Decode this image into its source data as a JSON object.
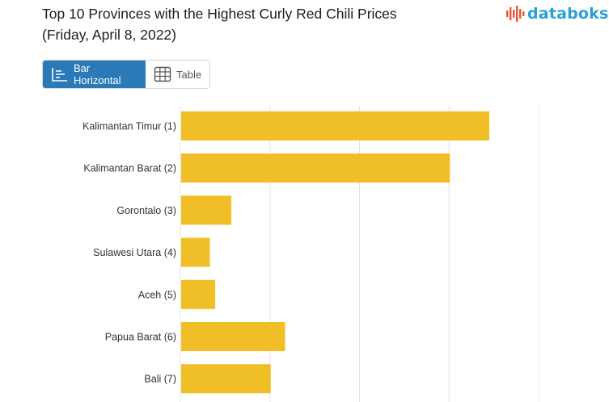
{
  "title": {
    "line1": "Top 10 Provinces with the Highest Curly Red Chili Prices",
    "line2": "(Friday, April 8, 2022)"
  },
  "logo": {
    "text": "databoks",
    "icon": "bar-logo-icon",
    "color": "#2a9fd6",
    "accent": "#e8553b"
  },
  "toggle": {
    "bar_label": "Bar Horizontal",
    "bar_icon": "bar-chart-icon",
    "table_label": "Table",
    "table_icon": "table-grid-icon",
    "active": "bar"
  },
  "chart_data": {
    "type": "bar",
    "orientation": "horizontal",
    "categories": [
      "Kalimantan Timur (1)",
      "Kalimantan Barat (2)",
      "Gorontalo (3)",
      "Sulawesi Utara (4)",
      "Aceh (5)",
      "Papua Barat (6)",
      "Bali (7)"
    ],
    "values": [
      86000,
      75000,
      14000,
      8000,
      9500,
      29000,
      25000
    ],
    "xlim": [
      0,
      100000
    ],
    "grid": true,
    "bar_color": "#f0be27",
    "title": "",
    "xlabel": "",
    "ylabel": ""
  }
}
